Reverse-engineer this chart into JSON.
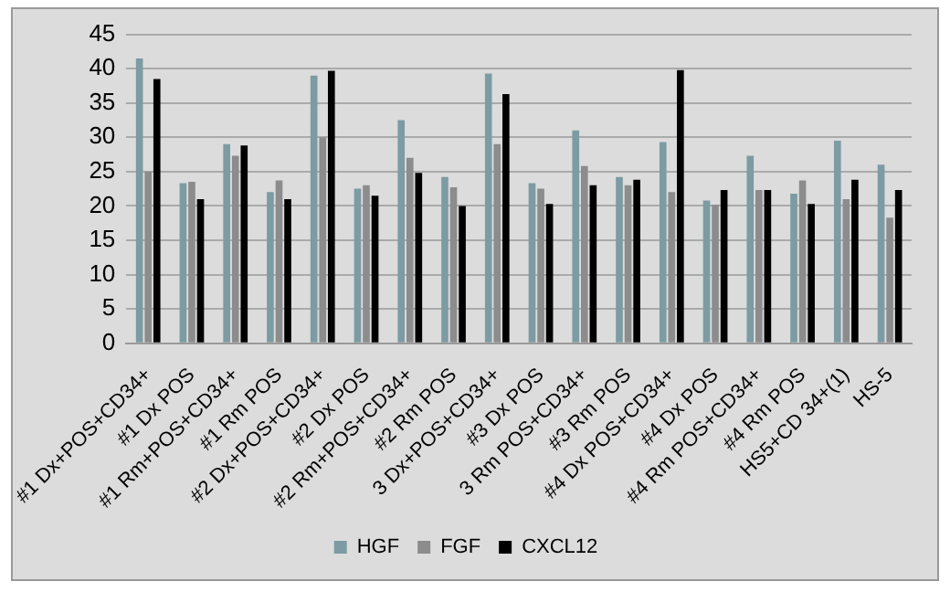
{
  "chart_data": {
    "type": "bar",
    "categories": [
      "#1 Dx+POS+CD34+",
      "#1 Dx POS",
      "#1 Rm+POS+CD34+",
      "#1 Rm POS",
      "#2 Dx+POS+CD34+",
      "#2 Dx POS",
      "#2 Rm+POS+CD34+",
      "#2 Rm POS",
      "3 Dx+POS+CD34+",
      "#3 Dx POS",
      "3 Rm POS+CD34+",
      "#3 Rm POS",
      "#4 Dx POS+CD34+",
      "#4 Dx POS",
      "#4 Rm POS+CD34+",
      "#4 Rm POS",
      "HS5+CD 34+(1)",
      "HS-5"
    ],
    "series": [
      {
        "name": "HGF",
        "color": "#7c9ba3",
        "values": [
          41.5,
          23.3,
          29,
          22,
          39,
          22.5,
          32.5,
          24.2,
          39.3,
          23.3,
          31,
          24.2,
          29.3,
          20.8,
          27.3,
          21.8,
          29.5,
          26
        ]
      },
      {
        "name": "FGF",
        "color": "#8c8c8c",
        "values": [
          25,
          23.5,
          27.3,
          23.7,
          30,
          23,
          27,
          22.7,
          29,
          22.5,
          25.8,
          23,
          22,
          20.2,
          22.3,
          23.7,
          21,
          18.3
        ]
      },
      {
        "name": "CXCL12",
        "color": "#000000",
        "values": [
          38.5,
          21,
          28.8,
          21,
          39.7,
          21.5,
          24.8,
          20,
          36.3,
          20.3,
          23,
          23.8,
          39.8,
          22.3,
          22.3,
          20.3,
          23.8,
          22.3
        ]
      }
    ],
    "ylim": [
      0,
      45
    ],
    "yticks": [
      0,
      5,
      10,
      15,
      20,
      25,
      30,
      35,
      40,
      45
    ],
    "grid": "y",
    "legend": "bottom"
  }
}
